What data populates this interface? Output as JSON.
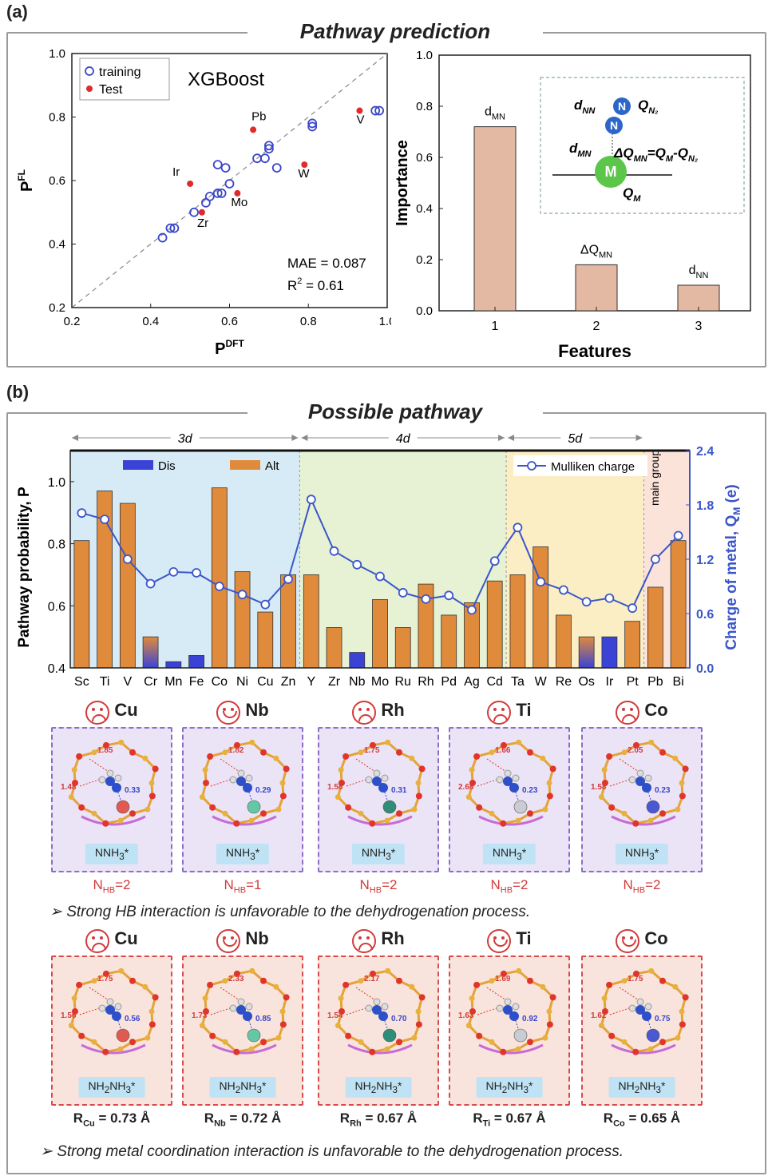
{
  "panel_a": {
    "label": "(a)",
    "title": "Pathway prediction"
  },
  "panel_b": {
    "label": "(b)",
    "title": "Possible pathway"
  },
  "chart_data": [
    {
      "type": "scatter",
      "xlabel": "P",
      "xlabel_sup": "DFT",
      "ylabel": "P",
      "ylabel_sup": "FL",
      "xlim": [
        0.2,
        1.0
      ],
      "ylim": [
        0.2,
        1.0
      ],
      "xticks": [
        "0.2",
        "0.4",
        "0.6",
        "0.8",
        "1.0"
      ],
      "yticks": [
        "0.2",
        "0.4",
        "0.6",
        "0.8",
        "1.0"
      ],
      "model_label": "XGBoost",
      "legend": [
        "training",
        "Test"
      ],
      "mae": "MAE = 0.087",
      "r2": "R",
      "r2_sup": "2",
      "r2_val": " = 0.61",
      "series": [
        {
          "name": "training",
          "color": "#3a46c9",
          "points": [
            [
              0.43,
              0.42
            ],
            [
              0.45,
              0.45
            ],
            [
              0.46,
              0.45
            ],
            [
              0.51,
              0.5
            ],
            [
              0.54,
              0.53
            ],
            [
              0.55,
              0.55
            ],
            [
              0.57,
              0.56
            ],
            [
              0.58,
              0.56
            ],
            [
              0.6,
              0.59
            ],
            [
              0.57,
              0.65
            ],
            [
              0.59,
              0.64
            ],
            [
              0.67,
              0.67
            ],
            [
              0.69,
              0.67
            ],
            [
              0.7,
              0.7
            ],
            [
              0.7,
              0.71
            ],
            [
              0.72,
              0.64
            ],
            [
              0.81,
              0.77
            ],
            [
              0.81,
              0.78
            ],
            [
              0.97,
              0.82
            ],
            [
              0.98,
              0.82
            ]
          ]
        },
        {
          "name": "Test",
          "color": "#e02b2b",
          "points": [
            [
              0.5,
              0.59
            ],
            [
              0.53,
              0.5
            ],
            [
              0.62,
              0.56
            ],
            [
              0.66,
              0.76
            ],
            [
              0.79,
              0.65
            ],
            [
              0.93,
              0.82
            ]
          ]
        }
      ],
      "annotations": [
        {
          "text": "Pb",
          "x": 0.66,
          "y": 0.76
        },
        {
          "text": "V",
          "x": 0.93,
          "y": 0.82
        },
        {
          "text": "Ir",
          "x": 0.5,
          "y": 0.59
        },
        {
          "text": "Mo",
          "x": 0.62,
          "y": 0.56
        },
        {
          "text": "Zr",
          "x": 0.53,
          "y": 0.5
        },
        {
          "text": "W",
          "x": 0.79,
          "y": 0.65
        }
      ]
    },
    {
      "type": "bar",
      "xlabel": "Features",
      "ylabel": "Importance",
      "ylim": [
        0.0,
        1.0
      ],
      "yticks": [
        "0.0",
        "0.2",
        "0.4",
        "0.6",
        "0.8",
        "1.0"
      ],
      "categories": [
        "1",
        "2",
        "3"
      ],
      "values": [
        0.72,
        0.18,
        0.1
      ],
      "bar_labels": [
        "d_MN",
        "ΔQ_MN",
        "d_NN"
      ],
      "color": "#e3b9a3",
      "inset": {
        "dNN": "d",
        "dNN_sub": "NN",
        "QN2": "Q",
        "QN2_sub": "N₂",
        "dMN": "d",
        "dMN_sub": "MN",
        "dQ": "ΔQ",
        "dQ_sub": "MN",
        "eq": "=Q",
        "eq_sub1": "M",
        "eq2": "-Q",
        "eq_sub2": "N₂",
        "QM": "Q",
        "QM_sub": "M",
        "atom_N": "N",
        "atom_M": "M"
      }
    },
    {
      "type": "bar",
      "ylabel": "Pathway probability, P",
      "y2label": "Charge of metal, Q",
      "y2label_sub": "M",
      "y2label_unit": " (e)",
      "ylim": [
        0.4,
        1.1
      ],
      "y2lim": [
        0.0,
        2.4
      ],
      "yticks": [
        "0.4",
        "0.6",
        "0.8",
        "1.0"
      ],
      "y2ticks": [
        "0.0",
        "0.6",
        "1.2",
        "1.8",
        "2.4"
      ],
      "groups": [
        "3d",
        "4d",
        "5d",
        "main group"
      ],
      "legend": [
        "Dis",
        "Alt",
        "Mulliken charge"
      ],
      "categories": [
        "Sc",
        "Ti",
        "V",
        "Cr",
        "Mn",
        "Fe",
        "Co",
        "Ni",
        "Cu",
        "Zn",
        "Y",
        "Zr",
        "Nb",
        "Mo",
        "Ru",
        "Rh",
        "Pd",
        "Ag",
        "Cd",
        "Ta",
        "W",
        "Re",
        "Os",
        "Ir",
        "Pt",
        "Pb",
        "Bi"
      ],
      "values": [
        0.81,
        0.97,
        0.93,
        0.5,
        0.42,
        0.44,
        0.98,
        0.71,
        0.58,
        0.7,
        0.7,
        0.53,
        0.45,
        0.62,
        0.53,
        0.67,
        0.57,
        0.61,
        0.68,
        0.7,
        0.79,
        0.57,
        0.5,
        0.5,
        0.55,
        0.66,
        0.81
      ],
      "pathway": [
        "Alt",
        "Alt",
        "Alt",
        "mixed",
        "Dis",
        "Dis",
        "Alt",
        "Alt",
        "Alt",
        "Alt",
        "Alt",
        "Alt",
        "Dis",
        "Alt",
        "Alt",
        "Alt",
        "Alt",
        "Alt",
        "Alt",
        "Alt",
        "Alt",
        "Alt",
        "mixed",
        "Dis",
        "Alt",
        "Alt",
        "Alt"
      ],
      "charge": [
        1.71,
        1.64,
        1.2,
        0.93,
        1.06,
        1.05,
        0.9,
        0.81,
        0.7,
        0.98,
        1.86,
        1.29,
        1.14,
        1.01,
        0.83,
        0.76,
        0.8,
        0.64,
        1.18,
        1.55,
        0.95,
        0.86,
        0.73,
        0.77,
        0.66,
        1.2,
        1.46
      ],
      "colors": {
        "Alt": "#e08a3c",
        "Dis": "#3b43d6",
        "charge": "#3b56c9"
      }
    }
  ],
  "cards_row1": [
    {
      "metal": "Cu",
      "face": "sad",
      "d1": "1.85",
      "d2": "1.48",
      "q": "0.33",
      "tag": "NNH",
      "tag_sub": "3",
      "tag_end": "*",
      "nhb": "N",
      "nhb_sub": "HB",
      "nhb_val": "=2",
      "ball": "#e25a4f"
    },
    {
      "metal": "Nb",
      "face": "happy",
      "d1": "1.82",
      "d2": "",
      "q": "0.29",
      "tag": "NNH",
      "tag_sub": "3",
      "tag_end": "*",
      "nhb": "N",
      "nhb_sub": "HB",
      "nhb_val": "=1",
      "ball": "#64c8a6"
    },
    {
      "metal": "Rh",
      "face": "sad",
      "d1": "1.75",
      "d2": "1.58",
      "q": "0.31",
      "tag": "NNH",
      "tag_sub": "3",
      "tag_end": "*",
      "nhb": "N",
      "nhb_sub": "HB",
      "nhb_val": "=2",
      "ball": "#2f8d78"
    },
    {
      "metal": "Ti",
      "face": "sad",
      "d1": "1.66",
      "d2": "2.68",
      "q": "0.23",
      "tag": "NNH",
      "tag_sub": "3",
      "tag_end": "*",
      "nhb": "N",
      "nhb_sub": "HB",
      "nhb_val": "=2",
      "ball": "#c9ccd2"
    },
    {
      "metal": "Co",
      "face": "sad",
      "d1": "2.05",
      "d2": "1.58",
      "q": "0.23",
      "tag": "NNH",
      "tag_sub": "3",
      "tag_end": "*",
      "nhb": "N",
      "nhb_sub": "HB",
      "nhb_val": "=2",
      "ball": "#4a58d2"
    }
  ],
  "note1": "Strong HB interaction is unfavorable to the dehydrogenation process.",
  "cards_row2": [
    {
      "metal": "Cu",
      "face": "sad",
      "d1": "1.75",
      "d2": "1.56",
      "q": "0.56",
      "tag": "NH",
      "tag_sub": "2",
      "tag_mid": "NH",
      "tag_sub2": "3",
      "tag_end": "*",
      "r": "R",
      "r_sub": "Cu",
      "r_val": " = 0.73 Å",
      "ball": "#e25a4f"
    },
    {
      "metal": "Nb",
      "face": "happy",
      "d1": "2.33",
      "d2": "1.73",
      "q": "0.85",
      "tag": "NH",
      "tag_sub": "2",
      "tag_mid": "NH",
      "tag_sub2": "3",
      "tag_end": "*",
      "r": "R",
      "r_sub": "Nb",
      "r_val": " = 0.72 Å",
      "ball": "#64c8a6"
    },
    {
      "metal": "Rh",
      "face": "sad",
      "d1": "2.17",
      "d2": "1.54",
      "q": "0.70",
      "tag": "NH",
      "tag_sub": "2",
      "tag_mid": "NH",
      "tag_sub2": "3",
      "tag_end": "*",
      "r": "R",
      "r_sub": "Rh",
      "r_val": " = 0.67 Å",
      "ball": "#2f8d78"
    },
    {
      "metal": "Ti",
      "face": "happy",
      "d1": "1.69",
      "d2": "1.63",
      "q": "0.92",
      "tag": "NH",
      "tag_sub": "2",
      "tag_mid": "NH",
      "tag_sub2": "3",
      "tag_end": "*",
      "r": "R",
      "r_sub": "Ti",
      "r_val": " = 0.67 Å",
      "ball": "#c9ccd2"
    },
    {
      "metal": "Co",
      "face": "happy",
      "d1": "1.75",
      "d2": "1.62",
      "q": "0.75",
      "tag": "NH",
      "tag_sub": "2",
      "tag_mid": "NH",
      "tag_sub2": "3",
      "tag_end": "*",
      "r": "R",
      "r_sub": "Co",
      "r_val": " = 0.65 Å",
      "ball": "#4a58d2"
    }
  ],
  "note2": "Strong metal coordination interaction is unfavorable to the dehydrogenation process."
}
